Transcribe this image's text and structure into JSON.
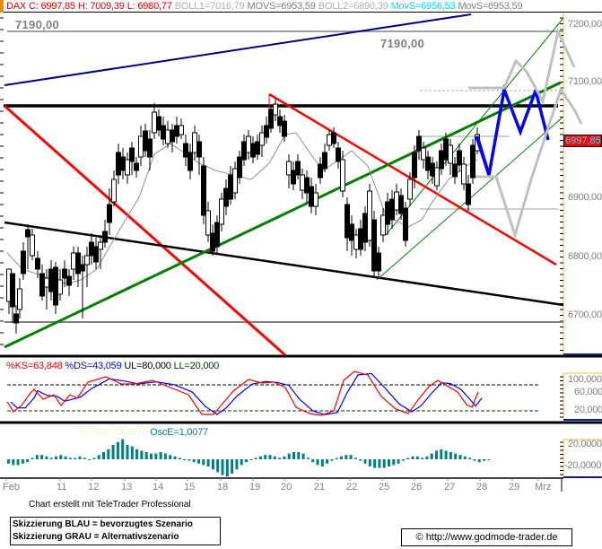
{
  "header": {
    "symbol": "DAX",
    "close_label": "C: 6997,85",
    "high_label": "H: 7009,39",
    "low_label": "L: 6980,77",
    "boll1": "BOLL1=7016,79",
    "movs1": "MOVS=6953,59",
    "boll2": "BOLL2=6890,39",
    "movs_cyan": "MovS=6956,53",
    "movs2": "MovS=6953,59"
  },
  "price_axis": {
    "labels": [
      "7200,00",
      "7100,00",
      "6900,00",
      "6800,00",
      "6700,00"
    ],
    "current_price": "6997,85"
  },
  "level_labels": {
    "left": "7190,00",
    "right": "7190,00"
  },
  "stochastic": {
    "title_ks": "%KS=63,848",
    "title_ds": "%DS=43,059",
    "title_ul": "UL=80,000",
    "title_ll": "LL=20,000",
    "axis_labels": [
      "100,000",
      "60,000",
      "20,000"
    ]
  },
  "oscillator": {
    "title_trigg": "TRIGG=13,6670",
    "title_osce": "OscE=1,0077",
    "axis_labels": [
      "20,0000",
      "-20,0000"
    ]
  },
  "date_axis": {
    "labels": [
      "Feb",
      "11",
      "12",
      "13",
      "14",
      "15",
      "18",
      "19",
      "20",
      "21",
      "22",
      "25",
      "26",
      "27",
      "28",
      "29",
      "Mrz"
    ]
  },
  "footer": {
    "credit": "Chart erstellt mit TeleTrader Professional",
    "legend_blue": "Skizzierung BLAU = bevorzugtes Szenario",
    "legend_grey": "Skizzierung GRAU = Alternativszenario",
    "url": "© http://www.godmode-trader.de"
  },
  "colors": {
    "up_candle": "#ffffff",
    "down_candle": "#000000",
    "resistance": "#000000",
    "red_trend": "#ff0000",
    "green_trend": "#008000",
    "blue_channel": "#000080",
    "blue_scenario": "#0000ff",
    "grey_scenario": "#c0c0c0",
    "ks": "#ff0000",
    "ds": "#0000ff",
    "osc": "#008080",
    "axis_border": "#f0c040",
    "cyan": "#00e0ff"
  },
  "chart_data": [
    {
      "type": "candlestick",
      "title": "DAX",
      "xlabel": "",
      "ylabel": "",
      "ylim": [
        6635,
        7235
      ],
      "x": [
        "Feb 8",
        "Feb 11",
        "Feb 12",
        "Feb 13",
        "Feb 14",
        "Feb 15",
        "Feb 18",
        "Feb 19",
        "Feb 20",
        "Feb 21",
        "Feb 22",
        "Feb 25",
        "Feb 26",
        "Feb 27",
        "Feb 28"
      ],
      "summary": {
        "close": 6997.85,
        "high": 7009.39,
        "low": 6980.77,
        "boll1": 7016.79,
        "boll2": 6890.39,
        "movs": 6953.59,
        "movs_fast": 6956.53
      },
      "approx_daily_close": [
        6700,
        6760,
        6850,
        6950,
        7020,
        6900,
        6780,
        6960,
        7040,
        6950,
        6820,
        6790,
        6990,
        6960,
        6998
      ],
      "horizontal_levels": [
        7190,
        7060,
        6690
      ],
      "trendlines": [
        "black resistance ~7060",
        "red downtrend channel",
        "green uptrend",
        "black declining support",
        "navy upper channel"
      ],
      "scenarios": {
        "blue_preferred": [
          6940,
          7090,
          7010,
          7090,
          6990
        ],
        "grey_alternative_up": [
          7095,
          7140,
          7120,
          7040,
          7200,
          7150
        ],
        "grey_alternative_down": [
          6940,
          6830,
          7000,
          7080,
          7030
        ]
      }
    },
    {
      "type": "line",
      "title": "Slow Stochastic",
      "series": [
        {
          "name": "%KS",
          "last": 63.848
        },
        {
          "name": "%DS",
          "last": 43.059
        }
      ],
      "ylim": [
        0,
        100
      ],
      "levels": {
        "UL": 80,
        "LL": 20
      }
    },
    {
      "type": "bar",
      "title": "Oscillator",
      "series": [
        {
          "name": "OscE",
          "last": 1.0077
        },
        {
          "name": "TRIGG",
          "last": 13.667
        }
      ],
      "ylim": [
        -30,
        30
      ]
    }
  ]
}
